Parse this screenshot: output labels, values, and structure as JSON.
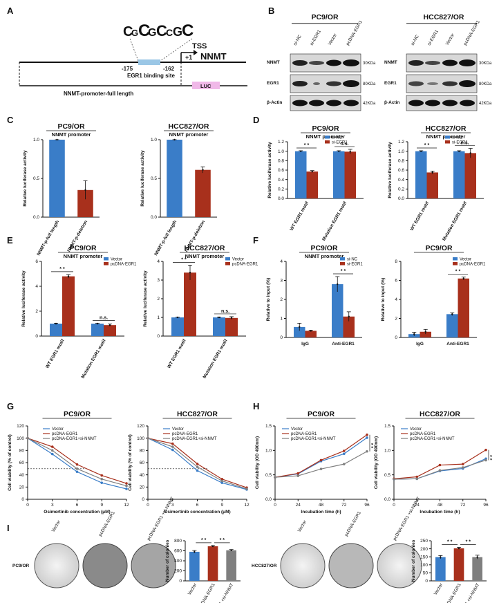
{
  "panel_labels": [
    "A",
    "B",
    "C",
    "D",
    "E",
    "F",
    "G",
    "H",
    "I"
  ],
  "panel_a": {
    "tss": "TSS",
    "gene": "NNMT",
    "plus1": "+1",
    "pos_left": "-175",
    "pos_right": "-162",
    "site_label": "EGR1 binding site",
    "promoter_label": "NNMT-promoter-full length",
    "luc": "LUC"
  },
  "panel_b": {
    "left": {
      "title": "PC9/OR",
      "lanes": [
        "si-NC",
        "si-EGR1",
        "Vector",
        "pcDNA-EGR1"
      ]
    },
    "right": {
      "title": "HCC827/OR",
      "lanes": [
        "si-NC",
        "si-EGR1",
        "Vector",
        "pcDNA-EGR1"
      ]
    },
    "proteins": [
      "NNMT",
      "EGR1",
      "β-Actin"
    ],
    "sizes": [
      "30KDa",
      "80KDa",
      "42KDa"
    ]
  },
  "colors": {
    "blue": "#3a7dc8",
    "red": "#a8301c",
    "gray": "#7f7f7f",
    "light": "#9bc7e6",
    "pink": "#f0b8e8",
    "nnmt": "#e8291c"
  },
  "chart_data": [
    {
      "id": "C1",
      "type": "bar",
      "title": "PC9/OR",
      "subtitle": "NNMT promoter",
      "ylabel": "Relative luciferase activity",
      "ylim": [
        0,
        1.0
      ],
      "yticks": [
        "0.0",
        "0.5",
        "1.0"
      ],
      "categories": [
        "NNMT-p-full length",
        "NNMT-p-deletion"
      ],
      "series": [
        {
          "name": "",
          "values": [
            1.0,
            0.35
          ],
          "errors": [
            0.0,
            0.12
          ]
        }
      ]
    },
    {
      "id": "C2",
      "type": "bar",
      "title": "HCC827/OR",
      "subtitle": "NNMT promoter",
      "ylabel": "Relative luciferase activity",
      "ylim": [
        0,
        1.0
      ],
      "yticks": [
        "0.0",
        "0.5",
        "1.0"
      ],
      "categories": [
        "NNMT-p-full length",
        "NNMT-p-deletion"
      ],
      "series": [
        {
          "name": "",
          "values": [
            1.0,
            0.61
          ],
          "errors": [
            0.0,
            0.04
          ]
        }
      ]
    },
    {
      "id": "D1",
      "type": "bar",
      "title": "PC9/OR",
      "subtitle": "NNMT promoter",
      "ylabel": "Relative luciferase activity",
      "ylim": [
        0,
        1.2
      ],
      "yticks": [
        "0.0",
        "0.2",
        "0.4",
        "0.6",
        "0.8",
        "1.0",
        "1.2"
      ],
      "categories": [
        "WT EGR1 motif",
        "Mutation EGR1 motif"
      ],
      "series": [
        {
          "name": "si-NC",
          "values": [
            1.0,
            1.0
          ],
          "errors": [
            0.01,
            0.01
          ]
        },
        {
          "name": "si-EGR1",
          "values": [
            0.57,
            0.99
          ],
          "errors": [
            0.02,
            0.05
          ]
        }
      ],
      "annotations": [
        "* *",
        "n.s."
      ]
    },
    {
      "id": "D2",
      "type": "bar",
      "title": "HCC827/OR",
      "subtitle": "NNMT promoter",
      "ylabel": "Relative luciferase activity",
      "ylim": [
        0,
        1.2
      ],
      "yticks": [
        "0.0",
        "0.2",
        "0.4",
        "0.6",
        "0.8",
        "1.0",
        "1.2"
      ],
      "categories": [
        "WT EGR1 motif",
        "Mutation EGR1 motif"
      ],
      "series": [
        {
          "name": "si-NC",
          "values": [
            1.0,
            1.0
          ],
          "errors": [
            0.01,
            0.01
          ]
        },
        {
          "name": "si-EGR1",
          "values": [
            0.55,
            0.96
          ],
          "errors": [
            0.03,
            0.1
          ]
        }
      ],
      "annotations": [
        "* *",
        "n.s."
      ]
    },
    {
      "id": "E1",
      "type": "bar",
      "title": "PC9/OR",
      "subtitle": "NNMT promoter",
      "ylabel": "Relative luciferase activity",
      "ylim": [
        0,
        6
      ],
      "yticks": [
        "0",
        "2",
        "4",
        "6"
      ],
      "categories": [
        "WT EGR1 motif",
        "Mutation EGR1 motif"
      ],
      "series": [
        {
          "name": "Vector",
          "values": [
            1.0,
            1.0
          ],
          "errors": [
            0.02,
            0.02
          ]
        },
        {
          "name": "pcDNA-EGR1",
          "values": [
            4.8,
            0.88
          ],
          "errors": [
            0.15,
            0.1
          ]
        }
      ],
      "annotations": [
        "* *",
        "n.s."
      ]
    },
    {
      "id": "E2",
      "type": "bar",
      "title": "HCC827/OR",
      "subtitle": "NNMT promoter",
      "ylabel": "Relative luciferase activity",
      "ylim": [
        0,
        4
      ],
      "yticks": [
        "0",
        "1",
        "2",
        "3",
        "4"
      ],
      "categories": [
        "WT EGR1 motif",
        "Mutation EGR1 motif"
      ],
      "series": [
        {
          "name": "Vector",
          "values": [
            1.0,
            1.0
          ],
          "errors": [
            0.02,
            0.02
          ]
        },
        {
          "name": "pcDNA-EGR1",
          "values": [
            3.4,
            0.97
          ],
          "errors": [
            0.4,
            0.07
          ]
        }
      ],
      "annotations": [
        "* *",
        "n.s."
      ]
    },
    {
      "id": "F1",
      "type": "bar",
      "title": "PC9/OR",
      "subtitle": "NNMT promoter",
      "ylabel": "Relative to input (%)",
      "ylim": [
        0,
        4
      ],
      "yticks": [
        "0",
        "1",
        "2",
        "3",
        "4"
      ],
      "categories": [
        "IgG",
        "Anti-EGR1"
      ],
      "series": [
        {
          "name": "si-NC",
          "values": [
            0.55,
            2.8
          ],
          "errors": [
            0.2,
            0.4
          ]
        },
        {
          "name": "si-EGR1",
          "values": [
            0.35,
            1.1
          ],
          "errors": [
            0.03,
            0.25
          ]
        }
      ],
      "annotations": [
        "",
        "* *"
      ]
    },
    {
      "id": "F2",
      "type": "bar",
      "title": "PC9/OR",
      "subtitle": "",
      "ylabel": "Relative to input (%)",
      "ylim": [
        0,
        8
      ],
      "yticks": [
        "0",
        "2",
        "4",
        "6",
        "8"
      ],
      "categories": [
        "IgG",
        "Anti-EGR1"
      ],
      "series": [
        {
          "name": "Vector",
          "values": [
            0.35,
            2.45
          ],
          "errors": [
            0.2,
            0.15
          ]
        },
        {
          "name": "pcDNA-EGR1",
          "values": [
            0.6,
            6.2
          ],
          "errors": [
            0.25,
            0.15
          ]
        }
      ],
      "annotations": [
        "",
        "* *"
      ]
    },
    {
      "id": "G1",
      "type": "line",
      "title": "PC9/OR",
      "xlabel": "Osimertinib concentration (μM)",
      "ylabel": "Cell viability (% of control)",
      "xlim": [
        0,
        12
      ],
      "ylim": [
        0,
        120
      ],
      "xticks": [
        "0",
        "3",
        "6",
        "9",
        "12"
      ],
      "yticks": [
        "0",
        "20",
        "40",
        "60",
        "80",
        "100",
        "120"
      ],
      "x": [
        0,
        3,
        6,
        9,
        12
      ],
      "series": [
        {
          "name": "Vector",
          "values": [
            100,
            74,
            45,
            27,
            17
          ]
        },
        {
          "name": "pcDNA-EGR1",
          "values": [
            100,
            86,
            57,
            39,
            26
          ]
        },
        {
          "name": "pcDNA-EGR1+si-NNMT",
          "values": [
            100,
            80,
            50,
            33,
            22
          ]
        }
      ]
    },
    {
      "id": "G2",
      "type": "line",
      "title": "HCC827/OR",
      "xlabel": "Osimertinib concentration (μM)",
      "ylabel": "Cell viability (% of control)",
      "xlim": [
        0,
        12
      ],
      "ylim": [
        0,
        120
      ],
      "xticks": [
        "0",
        "3",
        "6",
        "9",
        "12"
      ],
      "yticks": [
        "0",
        "20",
        "40",
        "60",
        "80",
        "100",
        "120"
      ],
      "x": [
        0,
        3,
        6,
        9,
        12
      ],
      "series": [
        {
          "name": "Vector",
          "values": [
            100,
            81,
            47,
            27,
            16
          ]
        },
        {
          "name": "pcDNA-EGR1",
          "values": [
            100,
            91,
            58,
            33,
            19
          ]
        },
        {
          "name": "pcDNA-EGR1+si-NNMT",
          "values": [
            100,
            86,
            53,
            30,
            17
          ]
        }
      ]
    },
    {
      "id": "H1",
      "type": "line",
      "title": "PC9/OR",
      "xlabel": "Incubation time (h)",
      "ylabel": "Cell viability (OD 490nm)",
      "xlim": [
        0,
        96
      ],
      "ylim": [
        0,
        1.5
      ],
      "xticks": [
        "0",
        "24",
        "48",
        "72",
        "96"
      ],
      "yticks": [
        "0.0",
        "0.5",
        "1.0",
        "1.5"
      ],
      "x": [
        0,
        24,
        48,
        72,
        96
      ],
      "series": [
        {
          "name": "Vector",
          "values": [
            0.45,
            0.52,
            0.78,
            0.93,
            1.26
          ]
        },
        {
          "name": "pcDNA-EGR1",
          "values": [
            0.45,
            0.53,
            0.8,
            0.99,
            1.32
          ]
        },
        {
          "name": "pcDNA-EGR1+si-NNMT",
          "values": [
            0.45,
            0.48,
            0.62,
            0.72,
            0.98
          ]
        }
      ],
      "annotations": [
        "* *"
      ]
    },
    {
      "id": "H2",
      "type": "line",
      "title": "HCC827/OR",
      "xlabel": "Incubation time (h)",
      "ylabel": "Cell viability (OD 490nm)",
      "xlim": [
        0,
        96
      ],
      "ylim": [
        0,
        1.5
      ],
      "xticks": [
        "0",
        "24",
        "48",
        "72",
        "96"
      ],
      "yticks": [
        "0.0",
        "0.5",
        "1.0",
        "1.5"
      ],
      "x": [
        0,
        24,
        48,
        72,
        96
      ],
      "series": [
        {
          "name": "Vector",
          "values": [
            0.41,
            0.42,
            0.58,
            0.63,
            0.83
          ]
        },
        {
          "name": "pcDNA-EGR1",
          "values": [
            0.42,
            0.46,
            0.7,
            0.72,
            1.01
          ]
        },
        {
          "name": "pcDNA-EGR1+si-NNMT",
          "values": [
            0.41,
            0.42,
            0.59,
            0.65,
            0.8
          ]
        }
      ],
      "annotations": [
        "* *"
      ]
    },
    {
      "id": "I1",
      "type": "bar",
      "title": "",
      "ylabel": "Number of colonies",
      "ylim": [
        0,
        800
      ],
      "yticks": [
        "0",
        "200",
        "400",
        "600",
        "800"
      ],
      "categories": [
        "Vector",
        "pcDNA-EGR1",
        "pcDNA-EGR1 +si-NNMT"
      ],
      "series": [
        {
          "name": "",
          "values": [
            580,
            690,
            610
          ],
          "errors": [
            25,
            15,
            15
          ]
        }
      ],
      "annotations": [
        "* *",
        "* *"
      ]
    },
    {
      "id": "I2",
      "type": "bar",
      "title": "",
      "ylabel": "Number of colonies",
      "ylim": [
        0,
        250
      ],
      "yticks": [
        "0",
        "50",
        "100",
        "150",
        "200",
        "250"
      ],
      "categories": [
        "Vector",
        "pcDNA-EGR1",
        "pcDNA-EGR1 +si-NNMT"
      ],
      "series": [
        {
          "name": "",
          "values": [
            148,
            203,
            148
          ],
          "errors": [
            10,
            6,
            12
          ]
        }
      ],
      "annotations": [
        "* *",
        "* *"
      ]
    }
  ],
  "panel_i": {
    "left_row": "PC9/OR",
    "right_row": "HCC827/OR",
    "dish_labels": [
      "Vector",
      "pcDNA-EGR1",
      "pcDNA-EGR1 +si-NNMT"
    ]
  }
}
